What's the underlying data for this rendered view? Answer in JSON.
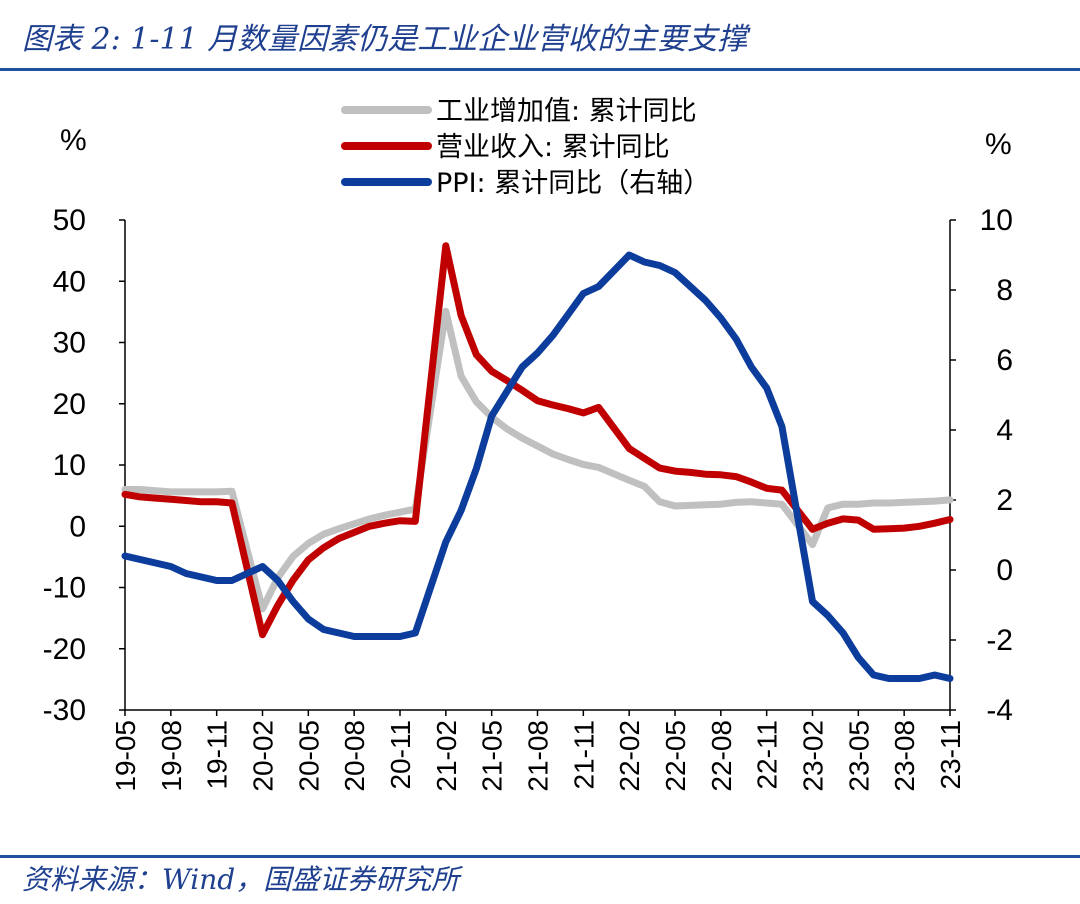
{
  "title": "图表 2:  1-11 月数量因素仍是工业企业营收的主要支撑",
  "source": "资料来源：Wind，国盛证券研究所",
  "colors": {
    "accent": "#1f4f9f",
    "gray": "#c0c0c0",
    "red": "#c00000",
    "blue": "#0c3d9c"
  },
  "chart_data": {
    "type": "line",
    "left_axis": {
      "unit_label": "%",
      "ylim": [
        -30,
        50
      ],
      "ticks": [
        "50",
        "40",
        "30",
        "20",
        "10",
        "0",
        "-10",
        "-20",
        "-30"
      ]
    },
    "right_axis": {
      "unit_label": "%",
      "ylim": [
        -4,
        10
      ],
      "ticks": [
        "10",
        "8",
        "6",
        "4",
        "2",
        "0",
        "-2",
        "-4"
      ]
    },
    "x_tick_labels": [
      "19-05",
      "19-08",
      "19-11",
      "20-02",
      "20-05",
      "20-08",
      "20-11",
      "21-02",
      "21-05",
      "21-08",
      "21-11",
      "22-02",
      "22-05",
      "22-08",
      "22-11",
      "23-02",
      "23-05",
      "23-08",
      "23-11"
    ],
    "x": [
      "19-05",
      "19-06",
      "19-07",
      "19-08",
      "19-09",
      "19-10",
      "19-11",
      "19-12",
      "20-02",
      "20-03",
      "20-04",
      "20-05",
      "20-06",
      "20-07",
      "20-08",
      "20-09",
      "20-10",
      "20-11",
      "20-12",
      "21-02",
      "21-03",
      "21-04",
      "21-05",
      "21-06",
      "21-07",
      "21-08",
      "21-09",
      "21-10",
      "21-11",
      "21-12",
      "22-02",
      "22-03",
      "22-04",
      "22-05",
      "22-06",
      "22-07",
      "22-08",
      "22-09",
      "22-10",
      "22-11",
      "22-12",
      "23-02",
      "23-03",
      "23-04",
      "23-05",
      "23-06",
      "23-07",
      "23-08",
      "23-09",
      "23-10",
      "23-11"
    ],
    "legend": [
      "工业增加值: 累计同比",
      "营业收入: 累计同比",
      "PPI: 累计同比（右轴）"
    ],
    "series": [
      {
        "name": "工业增加值: 累计同比",
        "axis": "left",
        "color": "#c0c0c0",
        "values": [
          6.0,
          6.0,
          5.8,
          5.6,
          5.6,
          5.6,
          5.6,
          5.7,
          -13.5,
          -8.4,
          -4.9,
          -2.8,
          -1.3,
          -0.4,
          0.4,
          1.2,
          1.8,
          2.3,
          2.8,
          35.1,
          24.5,
          20.3,
          17.8,
          15.9,
          14.4,
          13.1,
          11.8,
          10.9,
          10.1,
          9.6,
          7.5,
          6.5,
          4.0,
          3.3,
          3.4,
          3.5,
          3.6,
          3.9,
          4.0,
          3.8,
          3.6,
          -3.0,
          3.0,
          3.6,
          3.6,
          3.8,
          3.8,
          3.9,
          4.0,
          4.1,
          4.3
        ]
      },
      {
        "name": "营业收入: 累计同比",
        "axis": "left",
        "color": "#c00000",
        "values": [
          5.2,
          4.8,
          4.6,
          4.4,
          4.2,
          4.0,
          4.0,
          3.8,
          -17.7,
          -12.9,
          -8.8,
          -5.5,
          -3.5,
          -2.0,
          -1.0,
          0.0,
          0.5,
          0.9,
          0.8,
          45.8,
          34.4,
          28.0,
          25.3,
          23.8,
          22.2,
          20.5,
          19.8,
          19.2,
          18.5,
          19.4,
          12.7,
          11.1,
          9.5,
          9.0,
          8.8,
          8.5,
          8.4,
          8.1,
          7.2,
          6.2,
          5.9,
          -0.5,
          0.5,
          1.2,
          1.0,
          -0.5,
          -0.4,
          -0.3,
          0.0,
          0.5,
          1.1
        ]
      },
      {
        "name": "PPI: 累计同比（右轴）",
        "axis": "right",
        "color": "#0c3d9c",
        "values": [
          0.4,
          0.3,
          0.2,
          0.1,
          -0.1,
          -0.2,
          -0.3,
          -0.3,
          0.1,
          -0.3,
          -0.9,
          -1.4,
          -1.7,
          -1.8,
          -1.9,
          -1.9,
          -1.9,
          -1.9,
          -1.8,
          0.8,
          1.7,
          2.9,
          4.4,
          5.1,
          5.8,
          6.2,
          6.7,
          7.3,
          7.9,
          8.1,
          9.0,
          8.8,
          8.7,
          8.5,
          8.1,
          7.7,
          7.2,
          6.6,
          5.8,
          5.2,
          4.1,
          -0.9,
          -1.3,
          -1.8,
          -2.5,
          -3.0,
          -3.1,
          -3.1,
          -3.1,
          -3.0,
          -3.1
        ]
      }
    ],
    "grid": false,
    "legend_position": "top-center"
  }
}
